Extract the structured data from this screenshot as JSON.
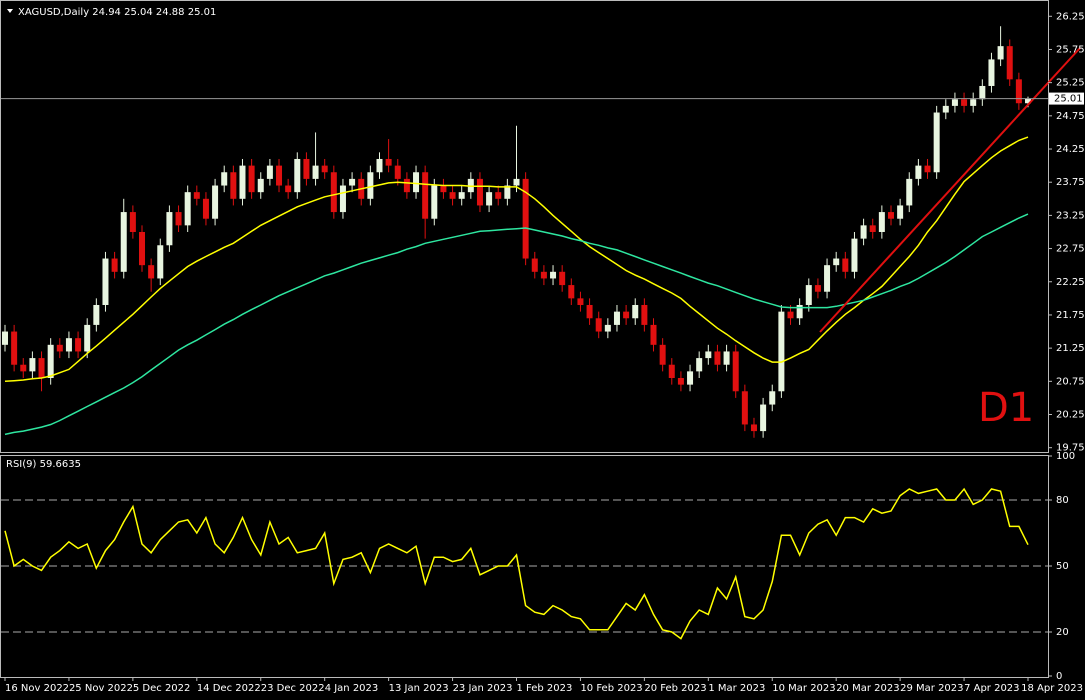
{
  "chart_data": [
    {
      "type": "candlestick",
      "title": "XAGUSD,Daily  24.94 25.04 24.88 25.01",
      "annotation": "D1",
      "last_price": 25.01,
      "up_color": "#e8f5e0",
      "down_color": "#e01010",
      "categories": [
        "16 Nov 2022",
        null,
        null,
        null,
        null,
        null,
        null,
        "25 Nov 2022",
        null,
        null,
        null,
        null,
        null,
        null,
        "5 Dec 2022",
        null,
        null,
        null,
        null,
        null,
        null,
        "14 Dec 2022",
        null,
        null,
        null,
        null,
        null,
        null,
        "23 Dec 2022",
        null,
        null,
        null,
        null,
        null,
        null,
        "4 Jan 2023",
        null,
        null,
        null,
        null,
        null,
        null,
        "13 Jan 2023",
        null,
        null,
        null,
        null,
        null,
        null,
        "23 Jan 2023",
        null,
        null,
        null,
        null,
        null,
        null,
        "1 Feb 2023",
        null,
        null,
        null,
        null,
        null,
        null,
        "10 Feb 2023",
        null,
        null,
        null,
        null,
        null,
        null,
        "20 Feb 2023",
        null,
        null,
        null,
        null,
        null,
        null,
        "1 Mar 2023",
        null,
        null,
        null,
        null,
        null,
        null,
        "10 Mar 2023",
        null,
        null,
        null,
        null,
        null,
        null,
        "20 Mar 2023",
        null,
        null,
        null,
        null,
        null,
        null,
        "29 Mar 2023",
        null,
        null,
        null,
        null,
        null,
        null,
        "7 Apr 2023",
        null,
        null,
        null,
        null,
        null,
        null,
        "18 Apr 2023"
      ],
      "open": [
        21.3,
        21.5,
        21.0,
        20.9,
        21.1,
        20.8,
        21.3,
        21.2,
        21.4,
        21.2,
        21.6,
        21.9,
        22.6,
        22.4,
        23.3,
        23.0,
        22.5,
        22.3,
        22.8,
        23.3,
        23.1,
        23.6,
        23.5,
        23.2,
        23.7,
        23.9,
        23.5,
        24.0,
        23.6,
        23.8,
        24.0,
        23.7,
        23.6,
        24.1,
        23.8,
        24.0,
        23.9,
        23.3,
        23.7,
        23.8,
        23.5,
        23.9,
        24.1,
        24.0,
        23.8,
        23.6,
        23.9,
        23.2,
        23.7,
        23.6,
        23.5,
        23.6,
        23.8,
        23.4,
        23.6,
        23.5,
        23.7,
        23.8,
        22.6,
        22.4,
        22.3,
        22.4,
        22.2,
        22.0,
        21.9,
        21.7,
        21.5,
        21.6,
        21.8,
        21.7,
        21.9,
        21.6,
        21.3,
        21.0,
        20.8,
        20.7,
        20.9,
        21.1,
        21.2,
        21.0,
        21.2,
        20.6,
        20.1,
        20.0,
        20.4,
        20.6,
        21.8,
        21.7,
        21.9,
        22.2,
        22.1,
        22.5,
        22.6,
        22.4,
        22.9,
        23.1,
        23.0,
        23.3,
        23.2,
        23.4,
        23.8,
        24.0,
        23.9,
        24.8,
        24.9,
        25.0,
        24.9,
        25.0,
        25.2,
        25.6,
        25.8,
        25.3,
        24.94
      ],
      "high": [
        21.6,
        21.6,
        21.1,
        21.2,
        21.2,
        21.4,
        21.4,
        21.5,
        21.5,
        21.7,
        22.0,
        22.7,
        22.7,
        23.5,
        23.4,
        23.1,
        22.6,
        22.9,
        23.4,
        23.4,
        23.7,
        23.7,
        23.6,
        23.8,
        24.0,
        24.0,
        24.1,
        24.1,
        23.9,
        24.1,
        24.1,
        23.8,
        24.2,
        24.2,
        24.5,
        24.1,
        24.0,
        23.8,
        23.9,
        23.9,
        24.0,
        24.2,
        24.4,
        24.1,
        23.9,
        24.0,
        24.0,
        23.8,
        23.8,
        23.7,
        23.7,
        23.9,
        23.9,
        23.7,
        23.7,
        23.8,
        24.6,
        23.9,
        22.7,
        22.5,
        22.5,
        22.5,
        22.3,
        22.1,
        22.0,
        21.8,
        21.7,
        21.9,
        21.9,
        22.0,
        22.0,
        21.7,
        21.4,
        21.1,
        20.9,
        21.0,
        21.2,
        21.3,
        21.3,
        21.3,
        21.3,
        20.7,
        20.2,
        20.5,
        20.7,
        21.9,
        21.9,
        22.0,
        22.3,
        22.3,
        22.6,
        22.7,
        22.7,
        23.0,
        23.2,
        23.2,
        23.4,
        23.4,
        23.5,
        23.9,
        24.1,
        24.1,
        24.9,
        25.0,
        25.1,
        25.1,
        25.1,
        25.3,
        25.7,
        26.1,
        25.9,
        25.4,
        25.04
      ],
      "low": [
        21.2,
        20.9,
        20.8,
        20.8,
        20.6,
        20.7,
        21.1,
        21.1,
        21.1,
        21.1,
        21.5,
        21.8,
        22.3,
        22.3,
        22.9,
        22.4,
        22.1,
        22.2,
        22.7,
        23.0,
        23.0,
        23.4,
        23.1,
        23.1,
        23.6,
        23.4,
        23.4,
        23.5,
        23.5,
        23.7,
        23.6,
        23.5,
        23.5,
        23.7,
        23.7,
        23.8,
        23.2,
        23.2,
        23.6,
        23.4,
        23.4,
        23.8,
        23.9,
        23.7,
        23.5,
        23.5,
        22.9,
        23.1,
        23.5,
        23.4,
        23.4,
        23.5,
        23.3,
        23.3,
        23.4,
        23.4,
        23.6,
        22.5,
        22.3,
        22.2,
        22.2,
        22.1,
        21.9,
        21.8,
        21.6,
        21.4,
        21.4,
        21.5,
        21.6,
        21.6,
        21.5,
        21.2,
        20.9,
        20.7,
        20.6,
        20.6,
        20.8,
        21.0,
        20.9,
        20.9,
        20.5,
        20.0,
        19.9,
        19.9,
        20.3,
        20.5,
        21.6,
        21.6,
        21.8,
        22.0,
        22.0,
        22.4,
        22.3,
        22.3,
        22.8,
        22.9,
        22.9,
        23.1,
        23.1,
        23.3,
        23.7,
        23.8,
        23.8,
        24.7,
        24.8,
        24.8,
        24.8,
        24.9,
        25.1,
        25.5,
        25.2,
        24.84,
        24.88
      ],
      "close": [
        21.5,
        21.0,
        20.9,
        21.1,
        20.8,
        21.3,
        21.2,
        21.4,
        21.2,
        21.6,
        21.9,
        22.6,
        22.4,
        23.3,
        23.0,
        22.5,
        22.3,
        22.8,
        23.3,
        23.1,
        23.6,
        23.5,
        23.2,
        23.7,
        23.9,
        23.5,
        24.0,
        23.6,
        23.8,
        24.0,
        23.7,
        23.6,
        24.1,
        23.8,
        24.0,
        23.9,
        23.3,
        23.7,
        23.8,
        23.5,
        23.9,
        24.1,
        24.0,
        23.8,
        23.6,
        23.9,
        23.2,
        23.7,
        23.6,
        23.5,
        23.6,
        23.8,
        23.4,
        23.6,
        23.5,
        23.7,
        23.8,
        22.6,
        22.4,
        22.3,
        22.4,
        22.2,
        22.0,
        21.9,
        21.7,
        21.5,
        21.6,
        21.8,
        21.7,
        21.9,
        21.6,
        21.3,
        21.0,
        20.8,
        20.7,
        20.9,
        21.1,
        21.2,
        21.0,
        21.2,
        20.6,
        20.1,
        20.0,
        20.4,
        20.6,
        21.8,
        21.7,
        21.9,
        22.2,
        22.1,
        22.5,
        22.6,
        22.4,
        22.9,
        23.1,
        23.0,
        23.3,
        23.2,
        23.4,
        23.8,
        24.0,
        23.9,
        24.8,
        24.9,
        25.0,
        24.9,
        25.0,
        25.2,
        25.6,
        25.8,
        25.3,
        24.94,
        25.01
      ],
      "series": [
        {
          "color": "#ffff00",
          "values": [
            20.75,
            20.76,
            20.77,
            20.79,
            20.8,
            20.83,
            20.88,
            20.93,
            21.05,
            21.17,
            21.28,
            21.4,
            21.52,
            21.64,
            21.76,
            21.89,
            22.02,
            22.15,
            22.26,
            22.37,
            22.48,
            22.56,
            22.63,
            22.7,
            22.77,
            22.83,
            22.92,
            23.01,
            23.1,
            23.17,
            23.24,
            23.31,
            23.38,
            23.43,
            23.48,
            23.53,
            23.56,
            23.59,
            23.62,
            23.65,
            23.68,
            23.71,
            23.74,
            23.75,
            23.74,
            23.73,
            23.72,
            23.71,
            23.7,
            23.7,
            23.7,
            23.69,
            23.69,
            23.69,
            23.68,
            23.68,
            23.68,
            23.6,
            23.5,
            23.38,
            23.25,
            23.13,
            23.01,
            22.89,
            22.78,
            22.69,
            22.6,
            22.51,
            22.42,
            22.35,
            22.29,
            22.22,
            22.15,
            22.08,
            22.0,
            21.88,
            21.77,
            21.66,
            21.55,
            21.46,
            21.36,
            21.27,
            21.18,
            21.1,
            21.04,
            21.04,
            21.1,
            21.17,
            21.23,
            21.37,
            21.51,
            21.64,
            21.76,
            21.86,
            21.97,
            22.07,
            22.18,
            22.33,
            22.48,
            22.63,
            22.8,
            23.0,
            23.17,
            23.37,
            23.57,
            23.76,
            23.88,
            24.0,
            24.12,
            24.22,
            24.3,
            24.38,
            24.43
          ]
        },
        {
          "color": "#2ee6a0",
          "values": [
            19.95,
            19.98,
            20.0,
            20.03,
            20.06,
            20.1,
            20.16,
            20.23,
            20.3,
            20.37,
            20.44,
            20.51,
            20.58,
            20.65,
            20.73,
            20.82,
            20.92,
            21.02,
            21.12,
            21.22,
            21.3,
            21.37,
            21.45,
            21.53,
            21.61,
            21.68,
            21.76,
            21.83,
            21.9,
            21.97,
            22.04,
            22.1,
            22.16,
            22.22,
            22.28,
            22.34,
            22.38,
            22.43,
            22.48,
            22.53,
            22.57,
            22.61,
            22.65,
            22.69,
            22.74,
            22.78,
            22.83,
            22.86,
            22.89,
            22.92,
            22.95,
            22.98,
            23.01,
            23.02,
            23.03,
            23.04,
            23.05,
            23.06,
            23.03,
            23.0,
            22.97,
            22.94,
            22.9,
            22.87,
            22.83,
            22.8,
            22.76,
            22.73,
            22.68,
            22.63,
            22.58,
            22.53,
            22.48,
            22.43,
            22.38,
            22.33,
            22.28,
            22.23,
            22.19,
            22.14,
            22.09,
            22.04,
            21.99,
            21.95,
            21.91,
            21.87,
            21.86,
            21.86,
            21.86,
            21.86,
            21.86,
            21.88,
            21.91,
            21.94,
            21.97,
            22.02,
            22.07,
            22.12,
            22.18,
            22.23,
            22.3,
            22.38,
            22.46,
            22.54,
            22.63,
            22.73,
            22.83,
            22.93,
            23.0,
            23.07,
            23.14,
            23.21,
            23.27
          ]
        }
      ],
      "ylim": [
        19.67,
        26.42
      ],
      "yticks": [
        19.75,
        20.25,
        20.75,
        21.25,
        21.75,
        22.25,
        22.75,
        23.25,
        23.75,
        24.25,
        24.75,
        25.25,
        25.75,
        26.25
      ]
    },
    {
      "type": "line",
      "title": "RSI(9) 59.6635",
      "series": [
        {
          "color": "#ffff00",
          "values": [
            66,
            50,
            53,
            50,
            48,
            54,
            57,
            61,
            58,
            60,
            49,
            57,
            62,
            70,
            77,
            60,
            56,
            62,
            66,
            70,
            71,
            65,
            72,
            60,
            56,
            63,
            72,
            62,
            55,
            70,
            60,
            63,
            56,
            57,
            58,
            65,
            42,
            53,
            54,
            56,
            47,
            58,
            60,
            58,
            56,
            59,
            42,
            54,
            54,
            52,
            53,
            58,
            46,
            48,
            50,
            50,
            55,
            32,
            29,
            28,
            32,
            30,
            27,
            26,
            21,
            21,
            21,
            27,
            33,
            30,
            37,
            28,
            21,
            20,
            17,
            25,
            30,
            28,
            40,
            35,
            45,
            27,
            26,
            30,
            43,
            64,
            64,
            55,
            65,
            69,
            71,
            64,
            72,
            72,
            70,
            76,
            74,
            75,
            82,
            85,
            83,
            84,
            85,
            80,
            80,
            85,
            78,
            80,
            85,
            84,
            68,
            68,
            59.6635
          ]
        }
      ],
      "ylim": [
        0,
        100
      ],
      "yticks": [
        0,
        20,
        50,
        80,
        100
      ]
    }
  ]
}
